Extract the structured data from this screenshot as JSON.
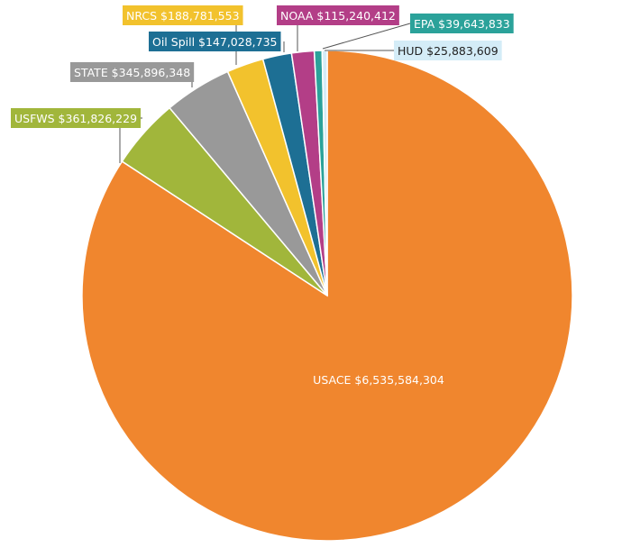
{
  "chart_data": {
    "type": "pie",
    "title": "",
    "start_angle_deg": 0,
    "direction": "clockwise",
    "slices": [
      {
        "name": "USACE",
        "value": 6535584304,
        "label": "USACE  $6,535,584,304",
        "color": "#F0862E",
        "text_color": "#ffffff",
        "label_placement": "inside"
      },
      {
        "name": "USFWS",
        "value": 361826229,
        "label": "USFWS  $361,826,229",
        "color": "#A1B63B",
        "text_color": "#ffffff",
        "label_placement": "outside"
      },
      {
        "name": "STATE",
        "value": 345896348,
        "label": "STATE $345,896,348",
        "color": "#999999",
        "text_color": "#ffffff",
        "label_placement": "outside"
      },
      {
        "name": "NRCS",
        "value": 188781553,
        "label": "NRCS   $188,781,553",
        "color": "#F2C22D",
        "text_color": "#ffffff",
        "label_placement": "outside"
      },
      {
        "name": "Oil Spill",
        "value": 147028735,
        "label": "Oil Spill $147,028,735",
        "color": "#1D6F94",
        "text_color": "#ffffff",
        "label_placement": "outside"
      },
      {
        "name": "NOAA",
        "value": 115240412,
        "label": "NOAA  $115,240,412",
        "color": "#B33E87",
        "text_color": "#ffffff",
        "label_placement": "outside"
      },
      {
        "name": "EPA",
        "value": 39643833,
        "label": "EPA  $39,643,833",
        "color": "#2BA29A",
        "text_color": "#ffffff",
        "label_placement": "outside"
      },
      {
        "name": "HUD",
        "value": 25883609,
        "label": "HUD  $25,883,609",
        "color": "#D4ECF7",
        "text_color": "#222222",
        "label_placement": "outside"
      }
    ]
  }
}
